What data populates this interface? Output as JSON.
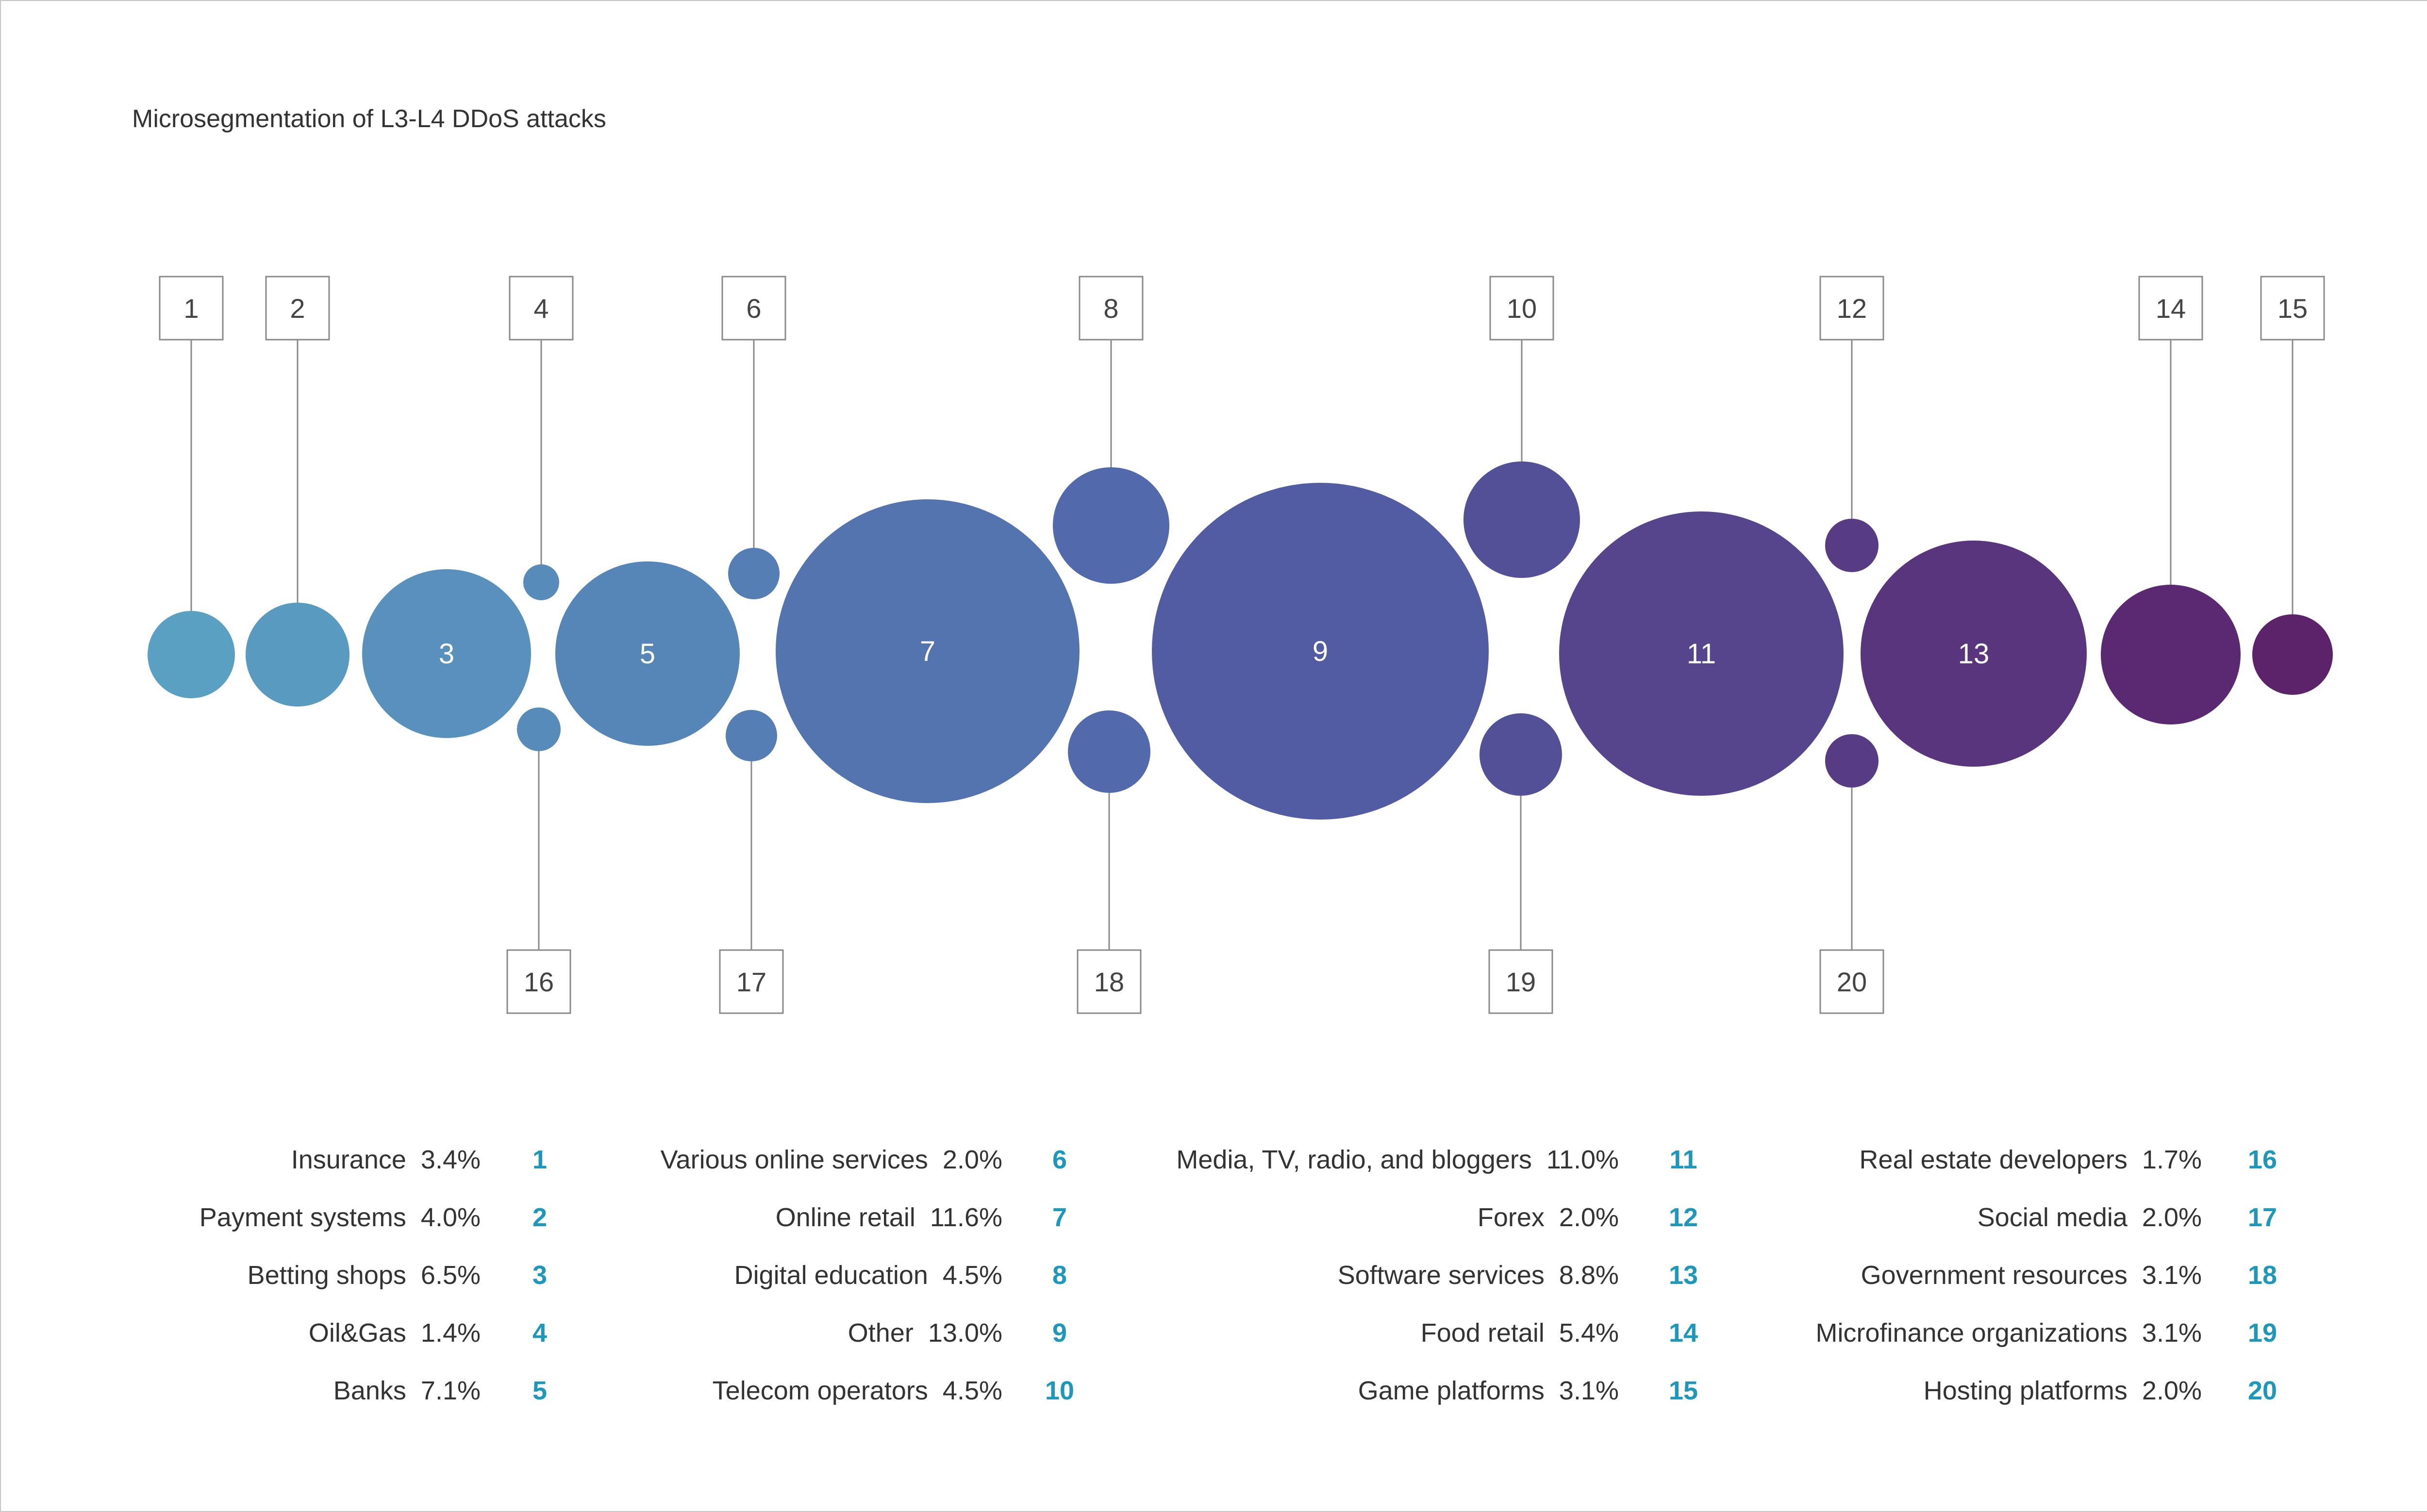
{
  "chart_data": {
    "type": "bubble",
    "title": "Microsegmentation of L3-L4 DDoS attacks",
    "value_unit": "%",
    "colors": {
      "start": "#5aa3c4",
      "mid": "#5161a8",
      "end": "#5c2068",
      "box_stroke": "#8a8a8a",
      "legend_number": "#1d98ba",
      "text": "#333333"
    },
    "items": [
      {
        "id": "1",
        "label": "Insurance",
        "value": 3.4,
        "value_text": "3.4%"
      },
      {
        "id": "2",
        "label": "Payment systems",
        "value": 4.0,
        "value_text": "4.0%"
      },
      {
        "id": "3",
        "label": "Betting shops",
        "value": 6.5,
        "value_text": "6.5%"
      },
      {
        "id": "4",
        "label": "Oil&Gas",
        "value": 1.4,
        "value_text": "1.4%"
      },
      {
        "id": "5",
        "label": "Banks",
        "value": 7.1,
        "value_text": "7.1%"
      },
      {
        "id": "6",
        "label": "Various online services",
        "value": 2.0,
        "value_text": "2.0%"
      },
      {
        "id": "7",
        "label": "Online retail",
        "value": 11.6,
        "value_text": "11.6%"
      },
      {
        "id": "8",
        "label": "Digital education",
        "value": 4.5,
        "value_text": "4.5%"
      },
      {
        "id": "9",
        "label": "Other",
        "value": 13.0,
        "value_text": "13.0%"
      },
      {
        "id": "10",
        "label": "Telecom operators",
        "value": 4.5,
        "value_text": "4.5%"
      },
      {
        "id": "11",
        "label": "Media, TV, radio, and bloggers",
        "value": 11.0,
        "value_text": "11.0%"
      },
      {
        "id": "12",
        "label": "Forex",
        "value": 2.0,
        "value_text": "2.0%"
      },
      {
        "id": "13",
        "label": "Software services",
        "value": 8.8,
        "value_text": "8.8%"
      },
      {
        "id": "14",
        "label": "Food retail",
        "value": 5.4,
        "value_text": "5.4%"
      },
      {
        "id": "15",
        "label": "Game platforms",
        "value": 3.1,
        "value_text": "3.1%"
      },
      {
        "id": "16",
        "label": "Real estate developers",
        "value": 1.7,
        "value_text": "1.7%"
      },
      {
        "id": "17",
        "label": "Social media",
        "value": 2.0,
        "value_text": "2.0%"
      },
      {
        "id": "18",
        "label": "Government resources",
        "value": 3.1,
        "value_text": "3.1%"
      },
      {
        "id": "19",
        "label": "Microfinance organizations",
        "value": 3.1,
        "value_text": "3.1%"
      },
      {
        "id": "20",
        "label": "Hosting platforms",
        "value": 2.0,
        "value_text": "2.0%"
      }
    ]
  }
}
